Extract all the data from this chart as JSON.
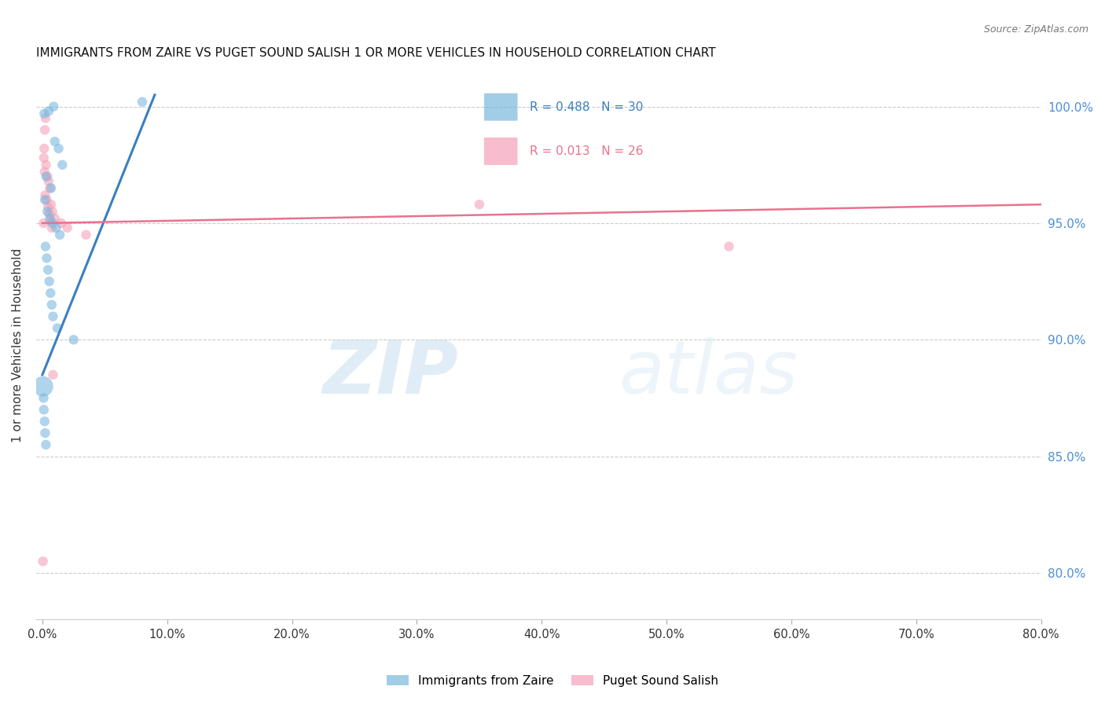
{
  "title": "IMMIGRANTS FROM ZAIRE VS PUGET SOUND SALISH 1 OR MORE VEHICLES IN HOUSEHOLD CORRELATION CHART",
  "source": "Source: ZipAtlas.com",
  "ylabel_left": "1 or more Vehicles in Household",
  "x_tick_labels": [
    "0.0%",
    "10.0%",
    "20.0%",
    "30.0%",
    "40.0%",
    "50.0%",
    "60.0%",
    "70.0%",
    "80.0%"
  ],
  "x_tick_values": [
    0.0,
    10.0,
    20.0,
    30.0,
    40.0,
    50.0,
    60.0,
    70.0,
    80.0
  ],
  "y_tick_labels": [
    "80.0%",
    "85.0%",
    "90.0%",
    "95.0%",
    "100.0%"
  ],
  "y_tick_values": [
    80.0,
    85.0,
    90.0,
    95.0,
    100.0
  ],
  "xlim": [
    -0.5,
    80.0
  ],
  "ylim": [
    78.0,
    101.5
  ],
  "legend_labels": [
    "Immigrants from Zaire",
    "Puget Sound Salish"
  ],
  "legend_R": [
    0.488,
    0.013
  ],
  "legend_N": [
    30,
    26
  ],
  "blue_color": "#7ab8de",
  "pink_color": "#f4a0b8",
  "blue_line_color": "#3a7fc1",
  "pink_line_color": "#e8728e",
  "right_axis_color": "#4a90d9",
  "watermark_zip": "ZIP",
  "watermark_atlas": "atlas",
  "blue_x": [
    0.15,
    0.5,
    0.9,
    1.0,
    1.3,
    1.6,
    0.3,
    0.7,
    0.2,
    0.4,
    0.6,
    0.8,
    1.1,
    1.4,
    0.25,
    0.35,
    0.45,
    0.55,
    0.65,
    0.75,
    0.85,
    1.2,
    2.5,
    8.0,
    0.05,
    0.1,
    0.12,
    0.18,
    0.22,
    0.28
  ],
  "blue_y": [
    99.7,
    99.8,
    100.0,
    98.5,
    98.2,
    97.5,
    97.0,
    96.5,
    96.0,
    95.5,
    95.2,
    95.0,
    94.8,
    94.5,
    94.0,
    93.5,
    93.0,
    92.5,
    92.0,
    91.5,
    91.0,
    90.5,
    90.0,
    100.2,
    88.0,
    87.5,
    87.0,
    86.5,
    86.0,
    85.5
  ],
  "blue_sizes": [
    80,
    80,
    80,
    80,
    80,
    80,
    80,
    80,
    80,
    80,
    80,
    80,
    80,
    80,
    80,
    80,
    80,
    80,
    80,
    80,
    80,
    80,
    80,
    80,
    350,
    80,
    80,
    80,
    80,
    80
  ],
  "pink_x": [
    0.05,
    0.1,
    0.15,
    0.2,
    0.25,
    0.3,
    0.4,
    0.5,
    0.6,
    0.7,
    0.8,
    1.0,
    1.5,
    2.0,
    3.5,
    0.35,
    0.45,
    0.55,
    0.65,
    0.75,
    0.85,
    35.0,
    55.0,
    0.12,
    0.18,
    0.22
  ],
  "pink_y": [
    80.5,
    95.0,
    98.2,
    99.0,
    99.5,
    97.5,
    97.0,
    96.8,
    96.5,
    95.8,
    95.5,
    95.2,
    95.0,
    94.8,
    94.5,
    96.0,
    95.7,
    95.4,
    95.1,
    94.8,
    88.5,
    95.8,
    94.0,
    97.8,
    97.2,
    96.2
  ],
  "pink_sizes": [
    80,
    80,
    80,
    80,
    80,
    80,
    80,
    80,
    80,
    80,
    80,
    80,
    80,
    80,
    80,
    80,
    80,
    80,
    80,
    80,
    80,
    80,
    80,
    80,
    80,
    80
  ],
  "blue_line_x": [
    0.0,
    9.0
  ],
  "blue_line_y": [
    88.5,
    100.5
  ],
  "pink_line_x": [
    0.0,
    80.0
  ],
  "pink_line_y": [
    95.0,
    95.8
  ]
}
